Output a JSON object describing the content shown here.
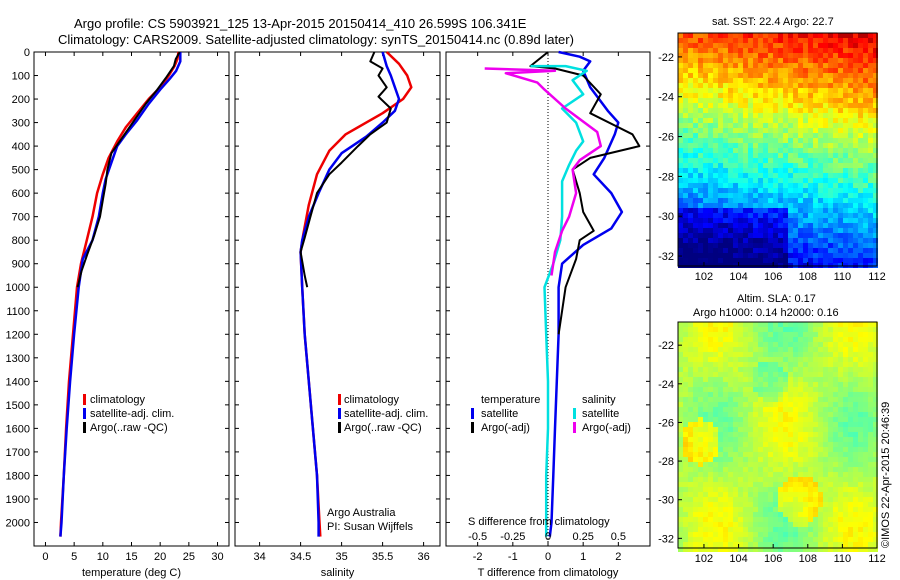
{
  "title": {
    "line1": "Argo profile: CS 5903921_125 13-Apr-2015 20150414_410 26.599S 106.341E",
    "line2": "Climatology: CARS2009. Satellite-adjusted climatology: synTS_20150414.nc (0.89d later)"
  },
  "copyright": "©IMOS 22-Apr-2015 20:46:39",
  "institution": {
    "line1": "Argo Australia",
    "line2": "PI: Susan Wijffels"
  },
  "colors": {
    "climatology": "#ee0000",
    "satellite": "#0000ee",
    "argo": "#000000",
    "cyan": "#00e0e0",
    "magenta": "#ee00ee"
  },
  "chart_data": [
    {
      "type": "line",
      "id": "temperature",
      "xlabel": "temperature (deg C)",
      "ylabel": "",
      "xlim": [
        -2,
        32
      ],
      "ylim": [
        2100,
        0
      ],
      "xticks": [
        0,
        5,
        10,
        15,
        20,
        25,
        30
      ],
      "yticks": [
        0,
        100,
        200,
        300,
        400,
        500,
        600,
        700,
        800,
        900,
        1000,
        1100,
        1200,
        1300,
        1400,
        1500,
        1600,
        1700,
        1800,
        1900,
        2000
      ],
      "legend": [
        "climatology",
        "satellite-adj. clim.",
        "Argo(..raw -QC)"
      ],
      "series": [
        {
          "name": "climatology",
          "color": "#ee0000",
          "points": [
            [
              23.2,
              0
            ],
            [
              23,
              30
            ],
            [
              22.5,
              60
            ],
            [
              21.5,
              100
            ],
            [
              20,
              150
            ],
            [
              18,
              200
            ],
            [
              16,
              260
            ],
            [
              14,
              320
            ],
            [
              12.5,
              380
            ],
            [
              11,
              450
            ],
            [
              10,
              520
            ],
            [
              9,
              600
            ],
            [
              8.2,
              700
            ],
            [
              7.2,
              800
            ],
            [
              6.2,
              900
            ],
            [
              5.5,
              1000
            ],
            [
              4.8,
              1200
            ],
            [
              4.1,
              1400
            ],
            [
              3.6,
              1600
            ],
            [
              3.2,
              1800
            ],
            [
              2.7,
              2000
            ],
            [
              2.6,
              2060
            ]
          ]
        },
        {
          "name": "satellite-adj. clim.",
          "color": "#0000ee",
          "points": [
            [
              23.5,
              0
            ],
            [
              23.5,
              40
            ],
            [
              22.8,
              80
            ],
            [
              21.8,
              110
            ],
            [
              20,
              160
            ],
            [
              18,
              220
            ],
            [
              16,
              290
            ],
            [
              14,
              350
            ],
            [
              12.5,
              400
            ],
            [
              11.5,
              470
            ],
            [
              10.5,
              540
            ],
            [
              10,
              600
            ],
            [
              9.3,
              700
            ],
            [
              8.2,
              800
            ],
            [
              6.5,
              880
            ],
            [
              5.8,
              1000
            ],
            [
              5,
              1200
            ],
            [
              4.3,
              1400
            ],
            [
              3.7,
              1600
            ],
            [
              3.2,
              1800
            ],
            [
              2.8,
              2000
            ],
            [
              2.6,
              2060
            ]
          ]
        },
        {
          "name": "Argo(..raw -QC)",
          "color": "#000000",
          "points": [
            [
              23.4,
              0
            ],
            [
              22.7,
              30
            ],
            [
              22.4,
              60
            ],
            [
              21,
              110
            ],
            [
              19.5,
              160
            ],
            [
              17.5,
              220
            ],
            [
              15.5,
              290
            ],
            [
              13.5,
              360
            ],
            [
              11.5,
              430
            ],
            [
              10.8,
              500
            ],
            [
              10.5,
              560
            ],
            [
              10,
              630
            ],
            [
              9.5,
              700
            ],
            [
              8.5,
              780
            ],
            [
              7.3,
              860
            ],
            [
              6.3,
              930
            ],
            [
              5.6,
              1000
            ]
          ]
        }
      ]
    },
    {
      "type": "line",
      "id": "salinity",
      "xlabel": "salinity",
      "ylabel": "",
      "xlim": [
        33.7,
        36.2
      ],
      "ylim": [
        2100,
        0
      ],
      "xticks": [
        34,
        34.5,
        35,
        35.5,
        36
      ],
      "legend": [
        "climatology",
        "satellite-adj. clim.",
        "Argo(..raw -QC)"
      ],
      "series": [
        {
          "name": "climatology",
          "color": "#ee0000",
          "points": [
            [
              35.55,
              0
            ],
            [
              35.7,
              50
            ],
            [
              35.8,
              100
            ],
            [
              35.85,
              150
            ],
            [
              35.75,
              200
            ],
            [
              35.5,
              260
            ],
            [
              35.3,
              300
            ],
            [
              35.05,
              350
            ],
            [
              34.85,
              420
            ],
            [
              34.7,
              520
            ],
            [
              34.6,
              650
            ],
            [
              34.53,
              780
            ],
            [
              34.5,
              850
            ],
            [
              34.52,
              1000
            ],
            [
              34.55,
              1200
            ],
            [
              34.6,
              1400
            ],
            [
              34.65,
              1600
            ],
            [
              34.7,
              1800
            ],
            [
              34.73,
              2000
            ],
            [
              34.74,
              2060
            ]
          ]
        },
        {
          "name": "satellite-adj. clim.",
          "color": "#0000ee",
          "points": [
            [
              35.5,
              0
            ],
            [
              35.55,
              60
            ],
            [
              35.6,
              100
            ],
            [
              35.65,
              150
            ],
            [
              35.7,
              200
            ],
            [
              35.65,
              250
            ],
            [
              35.5,
              300
            ],
            [
              35.3,
              360
            ],
            [
              35.0,
              430
            ],
            [
              34.85,
              500
            ],
            [
              34.72,
              600
            ],
            [
              34.6,
              700
            ],
            [
              34.52,
              800
            ],
            [
              34.5,
              850
            ],
            [
              34.52,
              1000
            ],
            [
              34.55,
              1200
            ],
            [
              34.6,
              1400
            ],
            [
              34.65,
              1600
            ],
            [
              34.7,
              1800
            ],
            [
              34.72,
              2000
            ],
            [
              34.72,
              2060
            ]
          ]
        },
        {
          "name": "Argo(..raw -QC)",
          "color": "#000000",
          "points": [
            [
              35.4,
              0
            ],
            [
              35.35,
              40
            ],
            [
              35.5,
              70
            ],
            [
              35.45,
              100
            ],
            [
              35.55,
              150
            ],
            [
              35.45,
              190
            ],
            [
              35.6,
              240
            ],
            [
              35.55,
              300
            ],
            [
              35.35,
              350
            ],
            [
              35.2,
              400
            ],
            [
              35.0,
              470
            ],
            [
              34.85,
              520
            ],
            [
              34.7,
              600
            ],
            [
              34.62,
              700
            ],
            [
              34.55,
              790
            ],
            [
              34.5,
              850
            ],
            [
              34.55,
              950
            ],
            [
              34.58,
              1000
            ]
          ]
        }
      ]
    },
    {
      "type": "line",
      "id": "difference",
      "xlabel": "T difference from climatology",
      "xlabel2": "S difference from climatology",
      "xlim": [
        -2.9,
        2.9
      ],
      "ylim": [
        2100,
        0
      ],
      "xticks": [
        "-2",
        "-1",
        "0",
        "1",
        "2"
      ],
      "xticks2": [
        "-0.5",
        "-0.25",
        "0",
        "0.25",
        "0.5"
      ],
      "legend": {
        "temperature": [
          "satellite",
          "Argo(-adj)"
        ],
        "salinity": [
          "satellite",
          "Argo(-adj)"
        ]
      },
      "series": [
        {
          "name": "satellite",
          "group": "temperature",
          "color": "#0000ee",
          "points": [
            [
              0.3,
              0
            ],
            [
              0.9,
              20
            ],
            [
              1.2,
              40
            ],
            [
              1.0,
              80
            ],
            [
              1.2,
              150
            ],
            [
              1.7,
              250
            ],
            [
              2.0,
              300
            ],
            [
              1.9,
              350
            ],
            [
              1.6,
              450
            ],
            [
              1.3,
              520
            ],
            [
              1.8,
              600
            ],
            [
              2.1,
              680
            ],
            [
              1.8,
              750
            ],
            [
              1.0,
              820
            ],
            [
              0.4,
              900
            ],
            [
              0.3,
              1000
            ],
            [
              0.3,
              1200
            ],
            [
              0.25,
              1400
            ],
            [
              0.2,
              1600
            ],
            [
              0.15,
              1800
            ],
            [
              0.1,
              2000
            ],
            [
              0.05,
              2060
            ]
          ]
        },
        {
          "name": "Argo(-adj)",
          "group": "temperature",
          "color": "#000000",
          "points": [
            [
              0,
              0
            ],
            [
              -0.5,
              60
            ],
            [
              0.2,
              70
            ],
            [
              1.0,
              100
            ],
            [
              1.5,
              180
            ],
            [
              1.2,
              260
            ],
            [
              2.4,
              350
            ],
            [
              2.6,
              400
            ],
            [
              1.2,
              450
            ],
            [
              0.7,
              500
            ],
            [
              0.9,
              600
            ],
            [
              1.0,
              680
            ],
            [
              1.3,
              760
            ],
            [
              0.9,
              800
            ],
            [
              0.8,
              880
            ],
            [
              0.5,
              1000
            ],
            [
              0.4,
              1100
            ],
            [
              0.3,
              1200
            ]
          ]
        },
        {
          "name": "satellite",
          "group": "salinity",
          "color": "#00e0e0",
          "points": [
            [
              -0.5,
              60
            ],
            [
              0.5,
              60
            ],
            [
              1.1,
              80
            ],
            [
              0.7,
              120
            ],
            [
              1.0,
              180
            ],
            [
              0.4,
              240
            ],
            [
              0.8,
              300
            ],
            [
              1.0,
              380
            ],
            [
              0.8,
              420
            ],
            [
              0.6,
              480
            ],
            [
              0.4,
              550
            ],
            [
              0.4,
              700
            ],
            [
              0.35,
              800
            ],
            [
              0.15,
              900
            ],
            [
              -0.1,
              1000
            ],
            [
              -0.05,
              1200
            ],
            [
              0,
              1400
            ],
            [
              0,
              1600
            ],
            [
              -0.05,
              1800
            ],
            [
              -0.05,
              2000
            ],
            [
              -0.05,
              2060
            ]
          ]
        },
        {
          "name": "Argo(-adj)",
          "group": "salinity",
          "color": "#ee00ee",
          "points": [
            [
              -1.8,
              70
            ],
            [
              0.2,
              80
            ],
            [
              -1.2,
              90
            ],
            [
              -0.3,
              130
            ],
            [
              -0.1,
              160
            ],
            [
              0.5,
              240
            ],
            [
              1.4,
              340
            ],
            [
              1.5,
              400
            ],
            [
              0.9,
              460
            ],
            [
              0.7,
              500
            ],
            [
              0.8,
              600
            ],
            [
              0.6,
              700
            ],
            [
              0.4,
              760
            ],
            [
              0.2,
              850
            ],
            [
              0.1,
              950
            ]
          ]
        }
      ]
    },
    {
      "type": "heatmap",
      "id": "sst-map",
      "title": "sat. SST: 22.4 Argo: 22.7",
      "xticks": [
        102,
        104,
        106,
        108,
        110,
        112
      ],
      "yticks": [
        -22,
        -24,
        -26,
        -28,
        -30,
        -32
      ],
      "xlim": [
        100.5,
        112
      ],
      "ylim": [
        -32.5,
        -20.8
      ]
    },
    {
      "type": "heatmap",
      "id": "sla-map",
      "title": "Altim. SLA: 0.17",
      "subtitle": "Argo h1000: 0.14 h2000: 0.16",
      "xticks": [
        102,
        104,
        106,
        108,
        110,
        112
      ],
      "yticks": [
        -22,
        -24,
        -26,
        -28,
        -30,
        -32
      ],
      "xlim": [
        100.5,
        112
      ],
      "ylim": [
        -32.5,
        -20.8
      ]
    }
  ]
}
